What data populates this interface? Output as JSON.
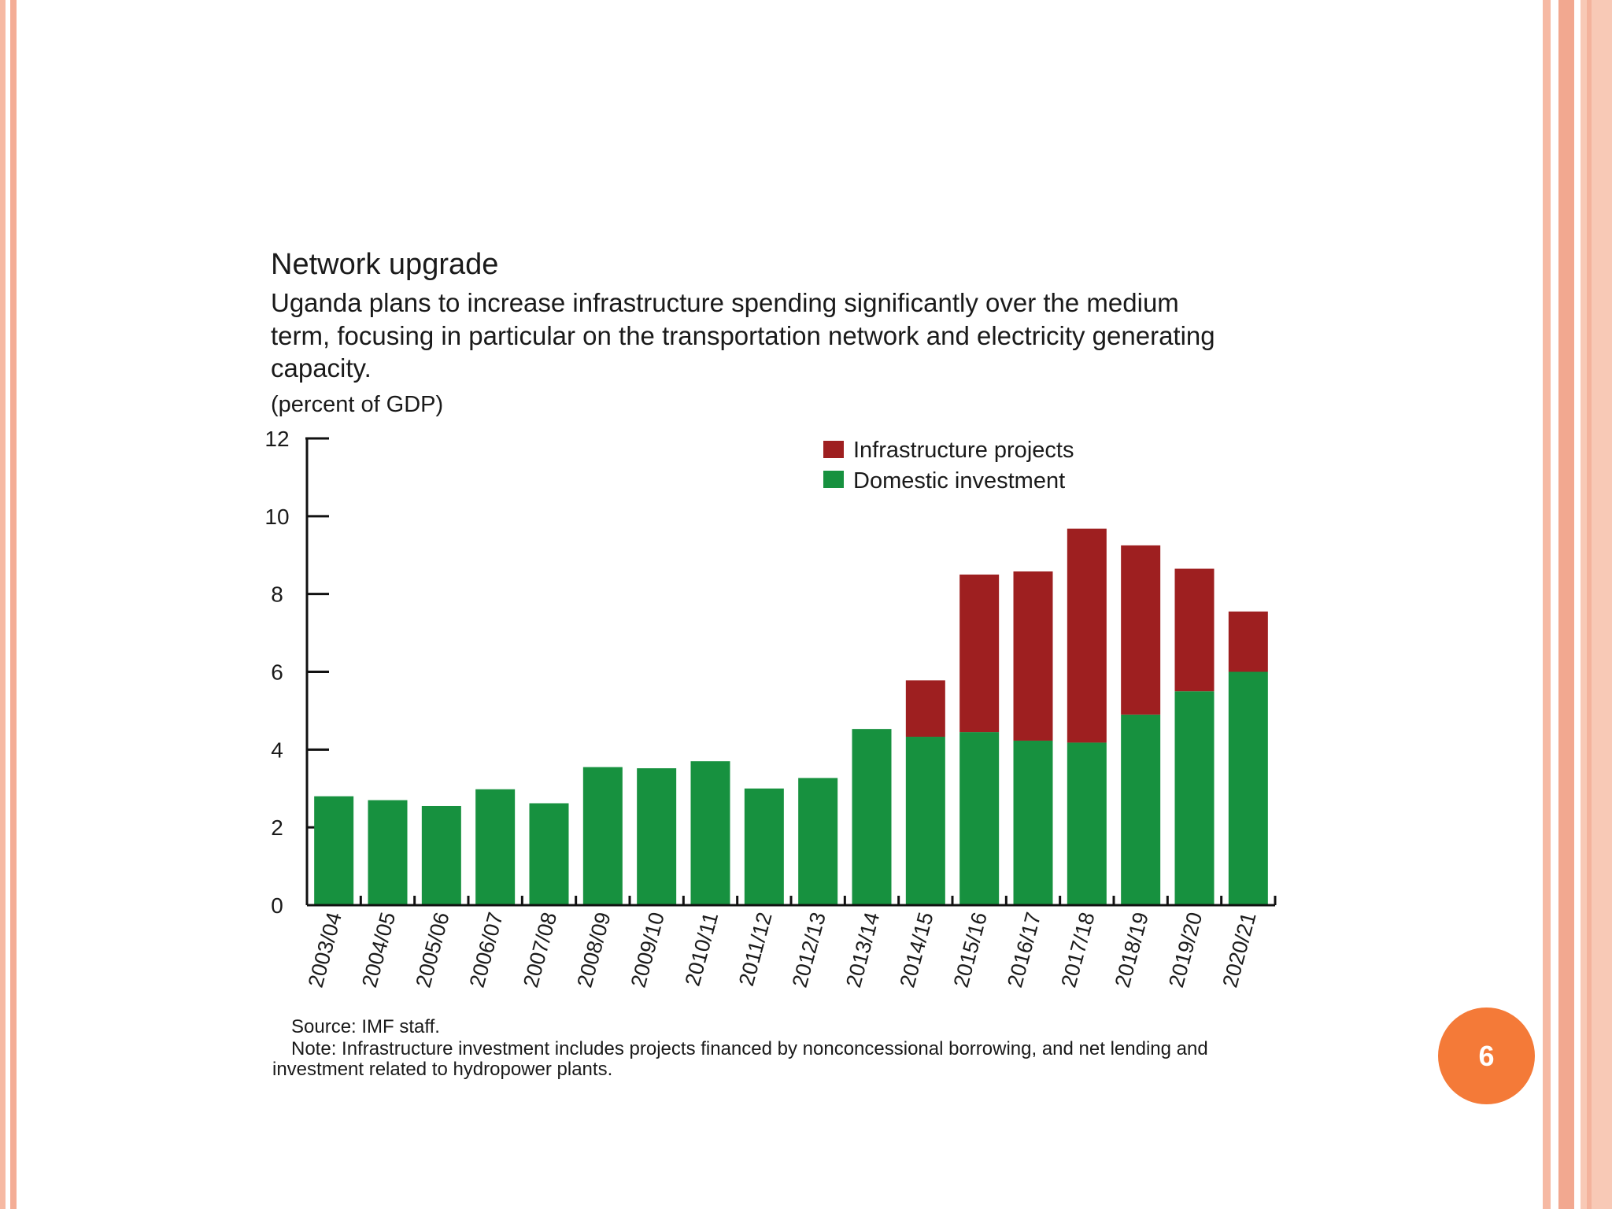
{
  "slide": {
    "page_number": "6",
    "colors": {
      "frame": "#f4ad96",
      "badge": "#f47a38"
    }
  },
  "chart_data": {
    "type": "bar",
    "stacked": true,
    "title": "Network upgrade",
    "subtitle_lines": [
      "Uganda plans to increase infrastructure spending significantly over the medium",
      "term, focusing in particular on the transportation network and electricity generating",
      "capacity."
    ],
    "unit_label": "(percent of GDP)",
    "categories": [
      "2003/04",
      "2004/05",
      "2005/06",
      "2006/07",
      "2007/08",
      "2008/09",
      "2009/10",
      "2010/11",
      "2011/12",
      "2012/13",
      "2013/14",
      "2014/15",
      "2015/16",
      "2016/17",
      "2017/18",
      "2018/19",
      "2019/20",
      "2020/21"
    ],
    "series": [
      {
        "name": "Domestic investment",
        "color": "#17913f",
        "values": [
          2.8,
          2.7,
          2.55,
          2.98,
          2.62,
          3.55,
          3.52,
          3.7,
          3.0,
          3.27,
          4.53,
          4.33,
          4.45,
          4.23,
          4.18,
          4.9,
          5.5,
          6.0
        ]
      },
      {
        "name": "Infrastructure projects",
        "color": "#9e1f20",
        "values": [
          0,
          0,
          0,
          0,
          0,
          0,
          0,
          0,
          0,
          0,
          0,
          1.45,
          4.05,
          4.35,
          5.5,
          4.35,
          3.15,
          1.55
        ]
      }
    ],
    "legend_order": [
      "Infrastructure projects",
      "Domestic investment"
    ],
    "legend_position": "top-right",
    "ylim": [
      0,
      12
    ],
    "yticks": [
      "0",
      "2",
      "4",
      "6",
      "8",
      "10",
      "12"
    ],
    "grid": false,
    "source_note": "Source: IMF staff.",
    "note_lines": [
      "Note: Infrastructure investment includes projects financed by nonconcessional borrowing, and net lending and",
      "investment related to hydropower plants."
    ]
  }
}
